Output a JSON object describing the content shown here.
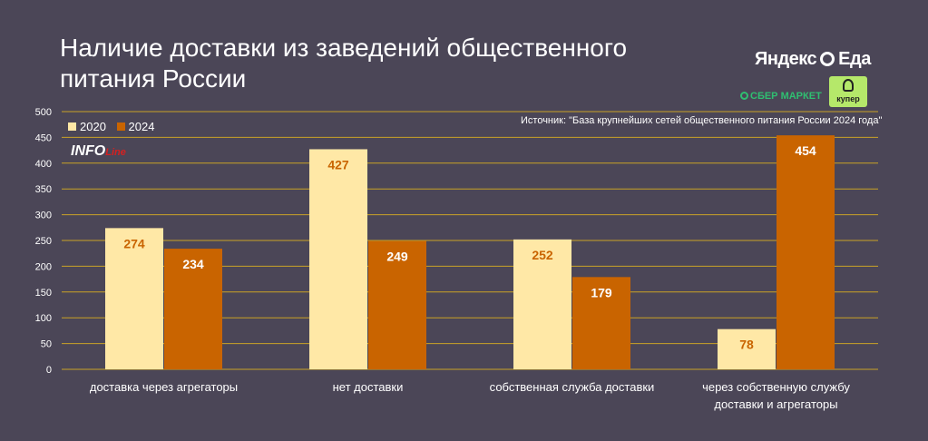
{
  "header": {
    "title": "Наличие доставки из заведений общественного питания России",
    "source": "Источник: \"База крупнейших сетей общественного питания России 2024 года\""
  },
  "logos": {
    "yandex_left": "Яндекс",
    "yandex_right": "Еда",
    "sber": "СБЕР МАРКЕТ",
    "kuper": "купер",
    "info_main": "INFO",
    "info_sub": "Line"
  },
  "colors": {
    "background": "#4b4657",
    "series_2020": "#ffe8a6",
    "series_2024": "#c96400",
    "gridline": "#c9a227",
    "label_2020": "#c96400",
    "label_2024": "#ffffff"
  },
  "chart_data": {
    "type": "bar",
    "title": "Наличие доставки из заведений общественного питания России",
    "categories": [
      "доставка через агрегаторы",
      "нет доставки",
      "собственная служба доставки",
      "через собственную службу доставки и агрегаторы"
    ],
    "categories_display": [
      [
        "доставка через агрегаторы"
      ],
      [
        "нет доставки"
      ],
      [
        "собственная служба доставки"
      ],
      [
        "через собственную службу",
        "доставки и агрегаторы"
      ]
    ],
    "series": [
      {
        "name": "2020",
        "values": [
          274,
          427,
          252,
          78
        ]
      },
      {
        "name": "2024",
        "values": [
          234,
          249,
          179,
          454
        ]
      }
    ],
    "ylim": [
      0,
      500
    ],
    "yticks": [
      0,
      50,
      100,
      150,
      200,
      250,
      300,
      350,
      400,
      450,
      500
    ],
    "grid": true,
    "legend": "top-left",
    "xlabel": "",
    "ylabel": ""
  }
}
